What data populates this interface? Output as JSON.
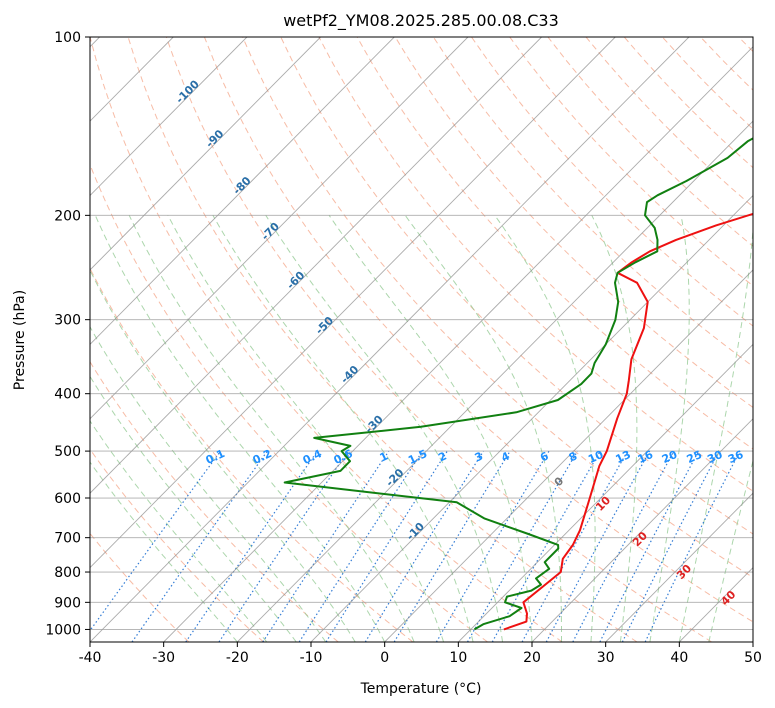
{
  "chart_data": {
    "type": "line",
    "title": "wetPf2_YM08.2025.285.00.08.C33",
    "xlabel": "Temperature (°C)",
    "ylabel": "Pressure (hPa)",
    "xlim": [
      -40,
      50
    ],
    "ylim": [
      1050,
      100
    ],
    "y_scale": "log",
    "x_ticks": [
      -40,
      -30,
      -20,
      -10,
      0,
      10,
      20,
      30,
      40,
      50
    ],
    "y_ticks": [
      1000,
      900,
      800,
      700,
      600,
      500,
      400,
      300,
      200,
      100
    ],
    "grid": true,
    "isotherm_labels": [
      "-100",
      "-90",
      "-80",
      "-70",
      "-60",
      "-50",
      "-40",
      "-30",
      "-20",
      "-10"
    ],
    "mixing_ratio_labels": [
      "0.1",
      "0.2",
      "0.4",
      "0.6",
      "1",
      "1.5",
      "2",
      "3",
      "4",
      "6",
      "8",
      "10",
      "13",
      "16",
      "20",
      "25",
      "30",
      "36"
    ],
    "moist_adiabat_labels": [
      "0",
      "10",
      "20",
      "30",
      "40"
    ],
    "colors": {
      "temperature": "#ee1111",
      "dewpoint": "#118011",
      "dry_adiabat": "#f4a080",
      "moist_adiabat": "#90c890",
      "mixing_ratio": "#1e6fd0",
      "isotherm": "#808080",
      "isotherm_label": "#2a6fa8",
      "moist_label": "#dd2222",
      "mixing_label": "#1e90ff"
    },
    "series": [
      {
        "role": "temperature",
        "points": [
          [
            14.5,
            1000
          ],
          [
            16.5,
            970
          ],
          [
            15.5,
            940
          ],
          [
            13.5,
            900
          ],
          [
            14.0,
            850
          ],
          [
            14.5,
            800
          ],
          [
            13.0,
            760
          ],
          [
            12.5,
            720
          ],
          [
            11.5,
            680
          ],
          [
            8.5,
            600
          ],
          [
            5.5,
            530
          ],
          [
            4.5,
            500
          ],
          [
            1.5,
            440
          ],
          [
            -0.5,
            400
          ],
          [
            -2.0,
            380
          ],
          [
            -4.5,
            350
          ],
          [
            -7.0,
            310
          ],
          [
            -10.0,
            280
          ],
          [
            -14.0,
            260
          ],
          [
            -18.0,
            250
          ],
          [
            -17.5,
            240
          ],
          [
            -16.5,
            230
          ],
          [
            -14.5,
            220
          ],
          [
            -11.0,
            208
          ],
          [
            -6.0,
            195
          ],
          [
            -3.0,
            185
          ],
          [
            -1.0,
            175
          ],
          [
            0.0,
            165
          ],
          [
            1.0,
            155
          ],
          [
            3.0,
            145
          ],
          [
            7.0,
            130
          ],
          [
            10.0,
            120
          ],
          [
            13.0,
            108
          ],
          [
            14.5,
            100
          ]
        ]
      },
      {
        "role": "dewpoint",
        "points": [
          [
            10.5,
            1000
          ],
          [
            11.0,
            980
          ],
          [
            13.5,
            950
          ],
          [
            14.0,
            920
          ],
          [
            11.0,
            900
          ],
          [
            10.5,
            880
          ],
          [
            13.0,
            860
          ],
          [
            13.5,
            840
          ],
          [
            12.0,
            820
          ],
          [
            12.5,
            790
          ],
          [
            11.0,
            770
          ],
          [
            11.0,
            730
          ],
          [
            10.5,
            720
          ],
          [
            5.0,
            690
          ],
          [
            -3.0,
            650
          ],
          [
            -9.0,
            610
          ],
          [
            -35.0,
            565
          ],
          [
            -29.0,
            540
          ],
          [
            -29.0,
            520
          ],
          [
            -31.5,
            500
          ],
          [
            -31.0,
            490
          ],
          [
            -37.0,
            475
          ],
          [
            -24.0,
            455
          ],
          [
            -13.0,
            430
          ],
          [
            -9.0,
            410
          ],
          [
            -8.0,
            385
          ],
          [
            -8.0,
            370
          ],
          [
            -9.0,
            355
          ],
          [
            -10.0,
            330
          ],
          [
            -12.0,
            300
          ],
          [
            -14.0,
            280
          ],
          [
            -17.0,
            260
          ],
          [
            -18.0,
            250
          ],
          [
            -17.0,
            240
          ],
          [
            -15.5,
            230
          ],
          [
            -17.0,
            220
          ],
          [
            -19.0,
            210
          ],
          [
            -22.0,
            200
          ],
          [
            -23.5,
            190
          ],
          [
            -23.0,
            185
          ],
          [
            -21.0,
            175
          ],
          [
            -18.5,
            160
          ],
          [
            -18.0,
            150
          ],
          [
            -16.0,
            140
          ],
          [
            -11.0,
            125
          ],
          [
            -7.5,
            115
          ],
          [
            -5.0,
            100
          ]
        ]
      }
    ]
  }
}
